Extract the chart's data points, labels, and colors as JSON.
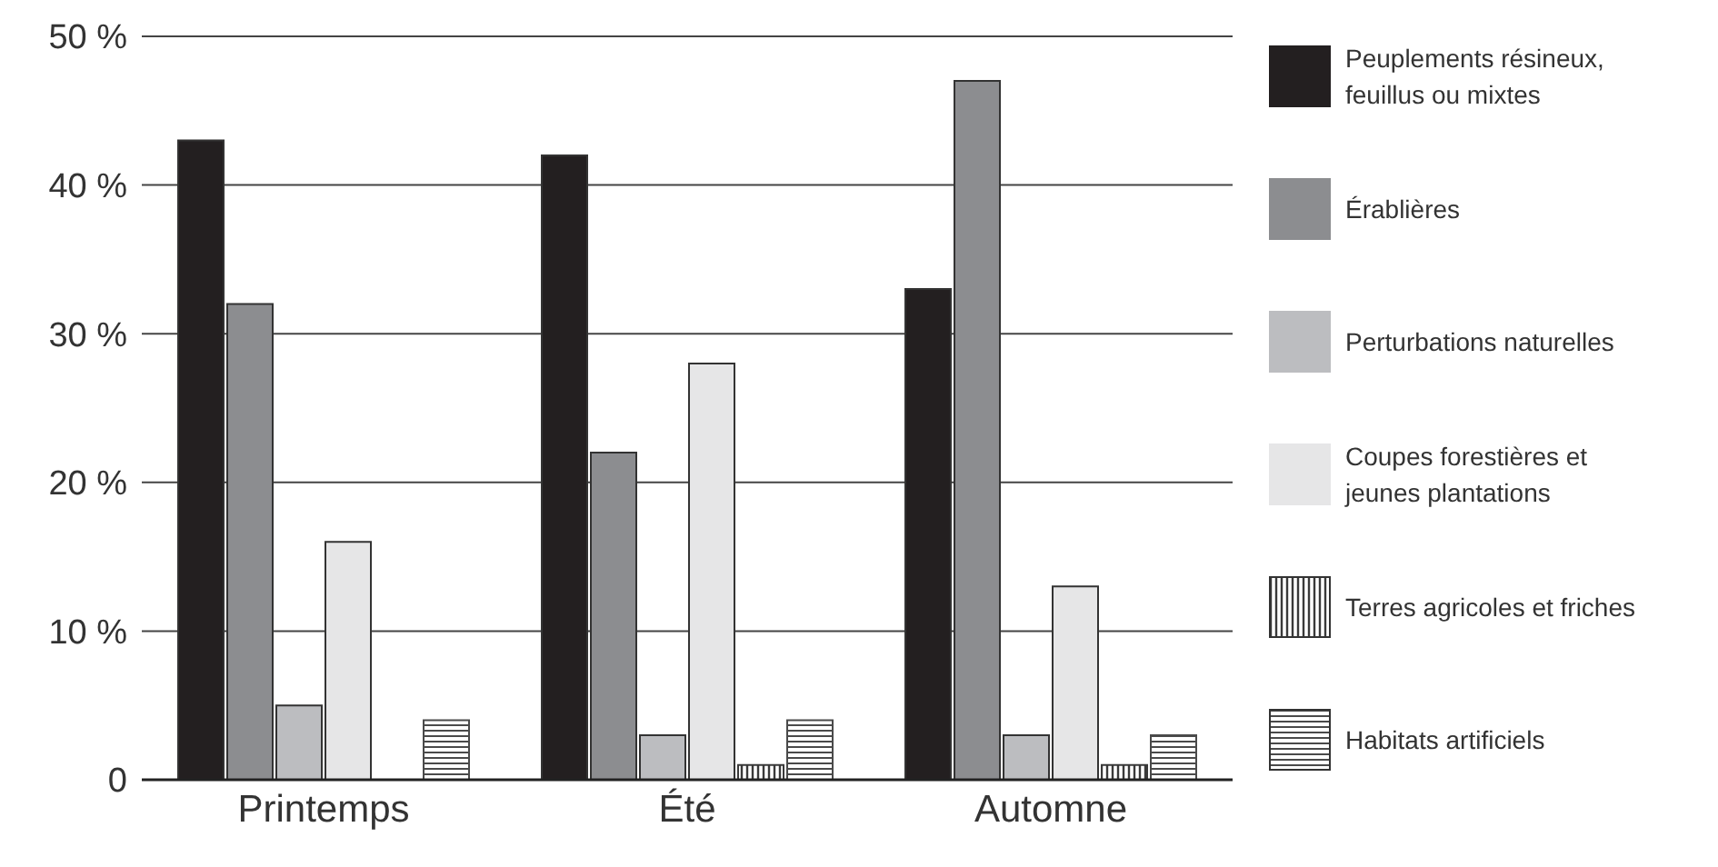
{
  "chart_data": {
    "type": "bar",
    "categories": [
      "Printemps",
      "Été",
      "Automne"
    ],
    "series": [
      {
        "name": "Peuplements résineux, feuillus ou mixtes",
        "color": "#231f20",
        "values": [
          43,
          42,
          33
        ]
      },
      {
        "name": "Érablières",
        "color": "#8c8d90",
        "values": [
          32,
          22,
          47
        ]
      },
      {
        "name": "Perturbations naturelles",
        "color": "#bcbdc0",
        "values": [
          5,
          3,
          3
        ]
      },
      {
        "name": "Coupes forestières et jeunes plantations",
        "color": "#e6e6e7",
        "values": [
          16,
          28,
          13
        ]
      },
      {
        "name": "Terres agricoles et friches",
        "color": "#3a3a3a",
        "values": [
          0,
          1,
          1
        ]
      },
      {
        "name": "Habitats artificiels",
        "color": "#4a4a4a",
        "values": [
          4,
          4,
          3
        ]
      }
    ],
    "ylim": [
      0,
      50
    ],
    "yticks": [
      0,
      {
        "value": 10,
        "label": "10 %"
      },
      {
        "value": 20,
        "label": "20 %"
      },
      {
        "value": 30,
        "label": "30 %"
      },
      {
        "value": 40,
        "label": "40 %"
      },
      {
        "value": 50,
        "label": "50 %"
      }
    ],
    "grid": "y",
    "legend": "right"
  }
}
